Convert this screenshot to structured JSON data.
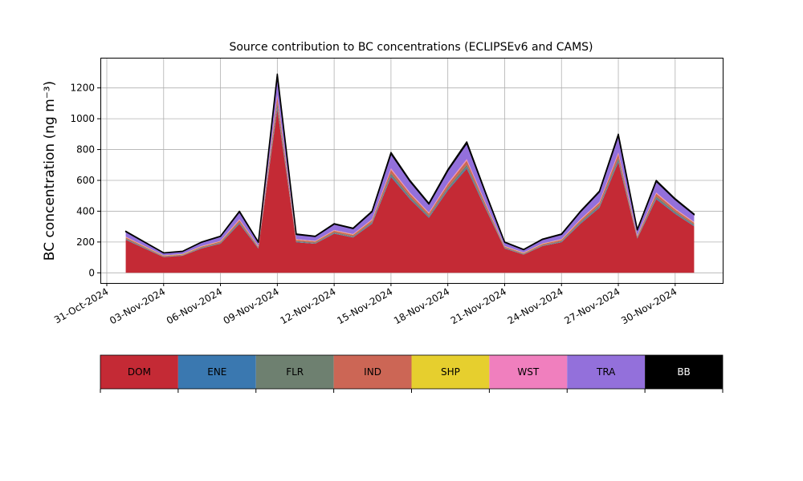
{
  "chart_data": {
    "type": "stacked-area",
    "title": "Source contribution to BC concentrations (ECLIPSEv6 and CAMS)",
    "y_label": "BC concentration (ng m⁻³)",
    "x": [
      "2024-11-01",
      "2024-11-02",
      "2024-11-03",
      "2024-11-04",
      "2024-11-05",
      "2024-11-06",
      "2024-11-07",
      "2024-11-08",
      "2024-11-09",
      "2024-11-10",
      "2024-11-11",
      "2024-11-12",
      "2024-11-13",
      "2024-11-14",
      "2024-11-15",
      "2024-11-16",
      "2024-11-17",
      "2024-11-18",
      "2024-11-19",
      "2024-11-20",
      "2024-11-21",
      "2024-11-22",
      "2024-11-23",
      "2024-11-24",
      "2024-11-25",
      "2024-11-26",
      "2024-11-27",
      "2024-11-28",
      "2024-11-29",
      "2024-11-30",
      "2024-12-01"
    ],
    "series": [
      {
        "name": "DOM",
        "color": "#c42a35",
        "label_color": "#000000",
        "values": [
          214,
          158,
          102,
          111,
          158,
          189,
          318,
          158,
          1062,
          198,
          189,
          254,
          229,
          318,
          622,
          478,
          357,
          534,
          676,
          414,
          158,
          118,
          174,
          198,
          318,
          422,
          718,
          222,
          478,
          382,
          302
        ]
      },
      {
        "name": "ENE",
        "color": "#3a78b0",
        "label_color": "#000000",
        "values": [
          3,
          2,
          1,
          1,
          2,
          2,
          4,
          2,
          13,
          3,
          2,
          3,
          3,
          4,
          8,
          6,
          5,
          7,
          9,
          5,
          2,
          2,
          2,
          3,
          4,
          5,
          9,
          3,
          6,
          5,
          4
        ]
      },
      {
        "name": "FLR",
        "color": "#6e8070",
        "label_color": "#000000",
        "values": [
          5,
          4,
          3,
          3,
          4,
          5,
          8,
          4,
          27,
          5,
          5,
          6,
          6,
          8,
          16,
          12,
          9,
          13,
          17,
          10,
          4,
          3,
          4,
          5,
          8,
          11,
          18,
          6,
          12,
          10,
          8
        ]
      },
      {
        "name": "IND",
        "color": "#cc6655",
        "label_color": "#000000",
        "values": [
          8,
          6,
          4,
          4,
          6,
          7,
          12,
          6,
          40,
          8,
          7,
          10,
          9,
          12,
          23,
          18,
          14,
          20,
          26,
          16,
          6,
          5,
          7,
          8,
          12,
          16,
          27,
          8,
          18,
          14,
          11
        ]
      },
      {
        "name": "SHP",
        "color": "#e6cf2e",
        "label_color": "#000000",
        "values": [
          2,
          2,
          2,
          2,
          2,
          2,
          2,
          2,
          2,
          2,
          2,
          2,
          2,
          2,
          2,
          2,
          2,
          2,
          2,
          2,
          2,
          2,
          2,
          2,
          2,
          2,
          2,
          2,
          2,
          2,
          2
        ]
      },
      {
        "name": "WST",
        "color": "#f07fbe",
        "label_color": "#000000",
        "values": [
          3,
          2,
          1,
          1,
          2,
          2,
          4,
          2,
          13,
          3,
          2,
          3,
          3,
          4,
          8,
          6,
          5,
          7,
          9,
          5,
          2,
          2,
          2,
          3,
          4,
          5,
          9,
          3,
          6,
          5,
          4
        ]
      },
      {
        "name": "TRA",
        "color": "#9370db",
        "label_color": "#000000",
        "values": [
          32,
          24,
          16,
          17,
          24,
          29,
          48,
          24,
          120,
          30,
          29,
          38,
          35,
          48,
          94,
          72,
          54,
          80,
          102,
          62,
          24,
          18,
          26,
          30,
          48,
          64,
          108,
          34,
          72,
          58,
          46
        ]
      },
      {
        "name": "BB",
        "color": "#000000",
        "label_color": "#ffffff",
        "values": [
          3,
          2,
          1,
          1,
          2,
          2,
          4,
          2,
          13,
          3,
          2,
          3,
          3,
          4,
          8,
          6,
          5,
          7,
          9,
          5,
          2,
          2,
          2,
          3,
          4,
          5,
          9,
          3,
          6,
          5,
          4
        ]
      }
    ],
    "xlim": [
      "2024-10-31",
      "2024-12-02"
    ],
    "xticks": [
      {
        "value": "2024-10-31",
        "label": "31-Oct-2024"
      },
      {
        "value": "2024-11-03",
        "label": "03-Nov-2024"
      },
      {
        "value": "2024-11-06",
        "label": "06-Nov-2024"
      },
      {
        "value": "2024-11-09",
        "label": "09-Nov-2024"
      },
      {
        "value": "2024-11-12",
        "label": "12-Nov-2024"
      },
      {
        "value": "2024-11-15",
        "label": "15-Nov-2024"
      },
      {
        "value": "2024-11-18",
        "label": "18-Nov-2024"
      },
      {
        "value": "2024-11-21",
        "label": "21-Nov-2024"
      },
      {
        "value": "2024-11-24",
        "label": "24-Nov-2024"
      },
      {
        "value": "2024-11-27",
        "label": "27-Nov-2024"
      },
      {
        "value": "2024-11-30",
        "label": "30-Nov-2024"
      }
    ],
    "ylim": [
      -66,
      1396
    ],
    "yticks": [
      0,
      200,
      400,
      600,
      800,
      1000,
      1200
    ],
    "grid": true,
    "legend": "bottom"
  }
}
